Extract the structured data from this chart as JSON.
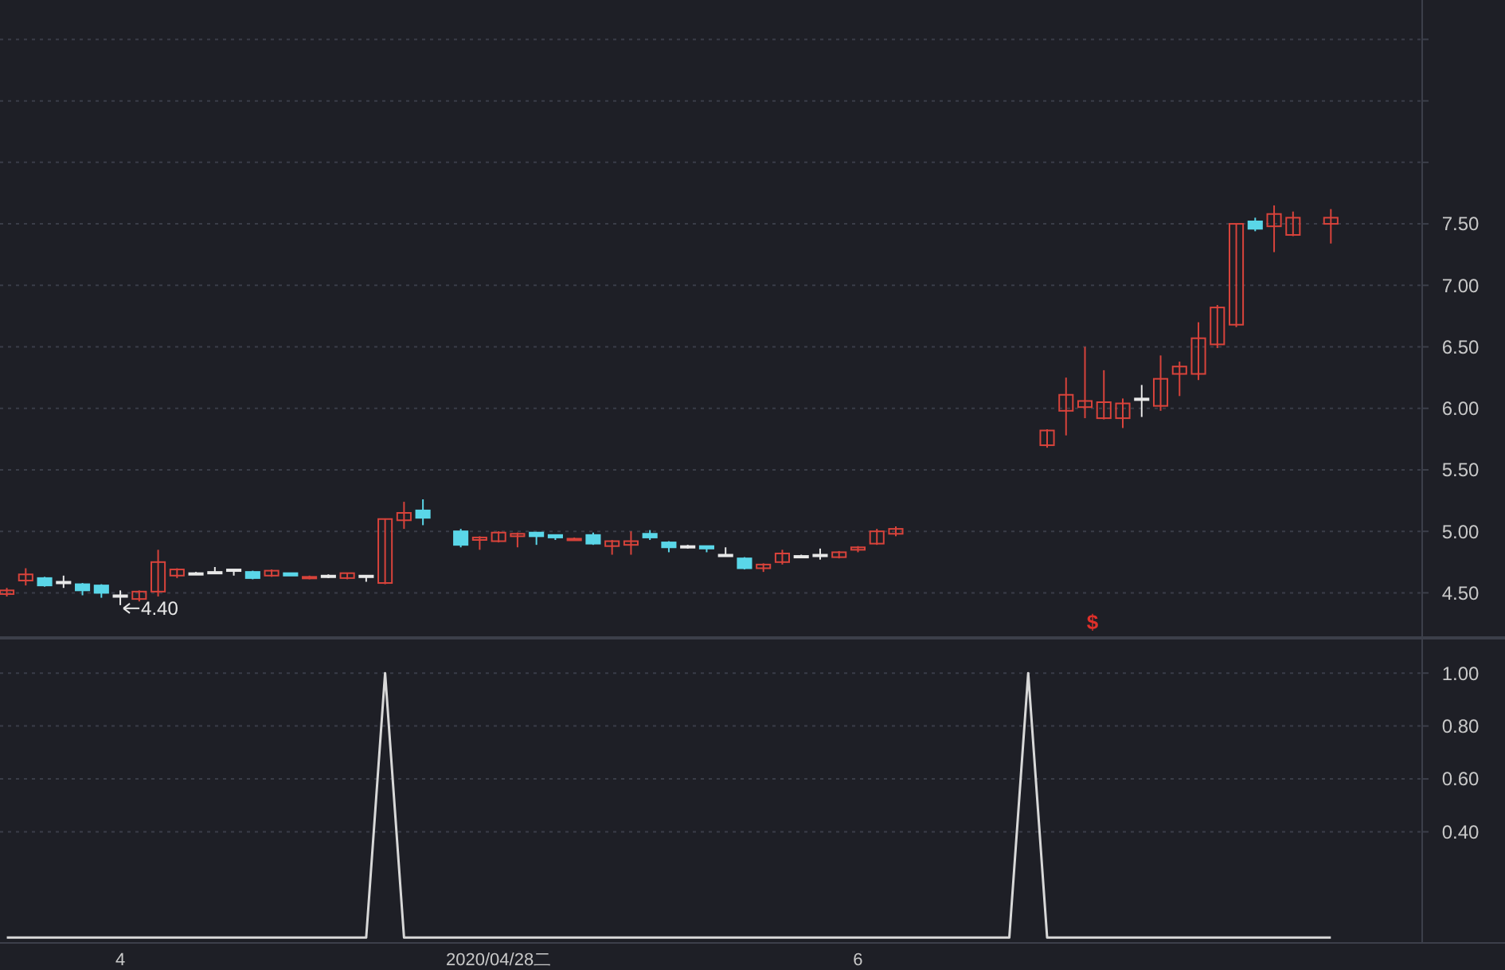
{
  "chart_data": [
    {
      "type": "candlestick",
      "tick_labels": "y",
      "grid": "y",
      "categories": [
        null,
        null,
        null,
        null,
        null,
        null,
        null,
        null,
        null,
        null,
        null,
        null,
        null,
        null,
        null,
        null,
        null,
        null,
        null,
        null,
        null,
        null,
        null,
        null,
        null,
        null,
        null,
        null,
        null,
        null,
        null,
        null,
        null,
        null,
        null,
        null,
        null,
        null,
        null,
        null,
        null,
        null,
        null,
        null,
        null,
        null,
        null,
        null,
        null,
        null,
        null,
        null,
        null,
        null,
        null,
        null,
        null,
        null,
        null,
        null,
        null,
        null,
        null,
        null,
        null,
        null,
        null,
        null,
        null,
        null,
        null
      ],
      "ohlc": [
        [
          4.49,
          4.54,
          4.47,
          4.52
        ],
        [
          4.6,
          4.7,
          4.56,
          4.65
        ],
        [
          4.62,
          4.63,
          4.55,
          4.56
        ],
        [
          4.59,
          4.64,
          4.54,
          4.59
        ],
        [
          4.57,
          4.58,
          4.48,
          4.52
        ],
        [
          4.56,
          4.57,
          4.46,
          4.5
        ],
        [
          4.48,
          4.52,
          4.4,
          4.48
        ],
        [
          4.45,
          4.52,
          4.43,
          4.51
        ],
        [
          4.51,
          4.85,
          4.47,
          4.75
        ],
        [
          4.64,
          4.7,
          4.62,
          4.69
        ],
        [
          4.66,
          4.67,
          4.65,
          4.66
        ],
        [
          4.67,
          4.71,
          4.67,
          4.67
        ],
        [
          4.69,
          4.69,
          4.64,
          4.69
        ],
        [
          4.67,
          4.68,
          4.61,
          4.62
        ],
        [
          4.64,
          4.69,
          4.63,
          4.68
        ],
        [
          4.66,
          4.66,
          4.64,
          4.64
        ],
        [
          4.62,
          4.64,
          4.61,
          4.63
        ],
        [
          4.64,
          4.65,
          4.62,
          4.64
        ],
        [
          4.62,
          4.66,
          4.61,
          4.66
        ],
        [
          4.64,
          4.64,
          4.59,
          4.64
        ],
        [
          4.58,
          5.1,
          4.57,
          5.1
        ],
        [
          5.09,
          5.24,
          5.02,
          5.15
        ],
        [
          5.17,
          5.26,
          5.05,
          5.11
        ],
        null,
        [
          5.0,
          5.02,
          4.87,
          4.89
        ],
        [
          4.93,
          4.96,
          4.85,
          4.95
        ],
        [
          4.92,
          5.0,
          4.91,
          4.99
        ],
        [
          4.96,
          4.99,
          4.87,
          4.98
        ],
        [
          4.99,
          4.99,
          4.89,
          4.96
        ],
        [
          4.97,
          4.97,
          4.93,
          4.95
        ],
        [
          4.93,
          4.95,
          4.93,
          4.94
        ],
        [
          4.97,
          4.99,
          4.89,
          4.9
        ],
        [
          4.88,
          4.93,
          4.81,
          4.92
        ],
        [
          4.89,
          5.0,
          4.81,
          4.92
        ],
        [
          4.98,
          5.01,
          4.93,
          4.95
        ],
        [
          4.91,
          4.92,
          4.83,
          4.87
        ],
        [
          4.88,
          4.89,
          4.86,
          4.88
        ],
        [
          4.88,
          4.88,
          4.83,
          4.86
        ],
        [
          4.81,
          4.87,
          4.81,
          4.81
        ],
        [
          4.78,
          4.79,
          4.69,
          4.7
        ],
        [
          4.7,
          4.74,
          4.67,
          4.73
        ],
        [
          4.75,
          4.85,
          4.73,
          4.82
        ],
        [
          4.8,
          4.81,
          4.79,
          4.8
        ],
        [
          4.81,
          4.86,
          4.77,
          4.81
        ],
        [
          4.79,
          4.84,
          4.78,
          4.83
        ],
        [
          4.85,
          4.88,
          4.83,
          4.87
        ],
        [
          4.9,
          5.02,
          4.89,
          5.0
        ],
        [
          4.98,
          5.04,
          4.96,
          5.02
        ],
        null,
        null,
        null,
        null,
        null,
        null,
        null,
        [
          5.7,
          5.83,
          5.68,
          5.82
        ],
        [
          5.98,
          6.25,
          5.78,
          6.11
        ],
        [
          6.01,
          6.5,
          5.92,
          6.06
        ],
        [
          5.92,
          6.31,
          5.91,
          6.05
        ],
        [
          5.92,
          6.08,
          5.84,
          6.04
        ],
        [
          6.08,
          6.19,
          5.93,
          6.08
        ],
        [
          6.02,
          6.43,
          5.98,
          6.24
        ],
        [
          6.28,
          6.38,
          6.1,
          6.34
        ],
        [
          6.28,
          6.7,
          6.23,
          6.57
        ],
        [
          6.52,
          6.84,
          6.49,
          6.82
        ],
        [
          6.68,
          7.5,
          6.66,
          7.5
        ],
        [
          7.52,
          7.55,
          7.44,
          7.46
        ],
        [
          7.48,
          7.65,
          7.27,
          7.58
        ],
        [
          7.41,
          7.6,
          7.4,
          7.55
        ],
        null,
        [
          7.5,
          7.62,
          7.34,
          7.55
        ]
      ],
      "colors": [
        "#d8433b",
        "#d8433b",
        "#5ad6e8",
        "#e8e8e8",
        "#5ad6e8",
        "#5ad6e8",
        "#e8e8e8",
        "#d8433b",
        "#d8433b",
        "#d8433b",
        "#e8e8e8",
        "#e8e8e8",
        "#e8e8e8",
        "#5ad6e8",
        "#d8433b",
        "#5ad6e8",
        "#d8433b",
        "#e8e8e8",
        "#d8433b",
        "#e8e8e8",
        "#d8433b",
        "#d8433b",
        "#5ad6e8",
        null,
        "#5ad6e8",
        "#d8433b",
        "#d8433b",
        "#d8433b",
        "#5ad6e8",
        "#5ad6e8",
        "#d8433b",
        "#5ad6e8",
        "#d8433b",
        "#d8433b",
        "#5ad6e8",
        "#5ad6e8",
        "#e8e8e8",
        "#5ad6e8",
        "#e8e8e8",
        "#5ad6e8",
        "#d8433b",
        "#d8433b",
        "#e8e8e8",
        "#e8e8e8",
        "#d8433b",
        "#d8433b",
        "#d8433b",
        "#d8433b",
        null,
        null,
        null,
        null,
        null,
        null,
        null,
        "#d8433b",
        "#d8433b",
        "#d8433b",
        "#d8433b",
        "#d8433b",
        "#e8e8e8",
        "#d8433b",
        "#d8433b",
        "#d8433b",
        "#d8433b",
        "#d8433b",
        "#5ad6e8",
        "#d8433b",
        "#d8433b",
        null,
        "#d8433b"
      ],
      "ylim": [
        4.14,
        9.32
      ],
      "yticks": [
        {
          "value": 4.5,
          "label": "4.50"
        },
        {
          "value": 5,
          "label": "5.00"
        },
        {
          "value": 5.5,
          "label": "5.50"
        },
        {
          "value": 6,
          "label": "6.00"
        },
        {
          "value": 6.5,
          "label": "6.50"
        },
        {
          "value": 7,
          "label": "7.00"
        },
        {
          "value": 7.5,
          "label": "7.50"
        },
        {
          "value": 8,
          "label": null
        },
        {
          "value": 8.5,
          "label": null
        },
        {
          "value": 9,
          "label": null
        }
      ],
      "annotations": [
        "4.40",
        "$"
      ]
    },
    {
      "type": "line",
      "grid": "y",
      "color": "#d8d8d8",
      "categories": [
        null,
        null,
        null,
        null,
        null,
        null,
        "4",
        null,
        null,
        null,
        null,
        null,
        null,
        null,
        null,
        null,
        null,
        null,
        null,
        null,
        null,
        null,
        null,
        null,
        null,
        null,
        "2020/04/28二",
        null,
        null,
        null,
        null,
        null,
        null,
        null,
        null,
        null,
        null,
        null,
        null,
        null,
        null,
        null,
        null,
        null,
        null,
        "6",
        null,
        null,
        null,
        null,
        null,
        null,
        null,
        null,
        null,
        null,
        null,
        null,
        null,
        null,
        null,
        null,
        null,
        null,
        null,
        null,
        null,
        null,
        null,
        null,
        null
      ],
      "values": [
        0,
        0,
        0,
        0,
        0,
        0,
        0,
        0,
        0,
        0,
        0,
        0,
        0,
        0,
        0,
        0,
        0,
        0,
        0,
        0,
        1,
        0,
        0,
        0,
        0,
        0,
        0,
        0,
        0,
        0,
        0,
        0,
        0,
        0,
        0,
        0,
        0,
        0,
        0,
        0,
        0,
        0,
        0,
        0,
        0,
        0,
        0,
        0,
        0,
        0,
        0,
        0,
        0,
        0,
        1,
        0,
        0,
        0,
        0,
        0,
        0,
        0,
        0,
        0,
        0,
        0,
        0,
        0,
        0,
        0,
        0
      ],
      "ylim": [
        -0.02,
        1.13
      ],
      "yticks": [
        {
          "value": 0.4,
          "label": "0.40"
        },
        {
          "value": 0.6,
          "label": "0.60"
        },
        {
          "value": 0.8,
          "label": "0.80"
        },
        {
          "value": 1,
          "label": "1.00"
        }
      ]
    }
  ]
}
